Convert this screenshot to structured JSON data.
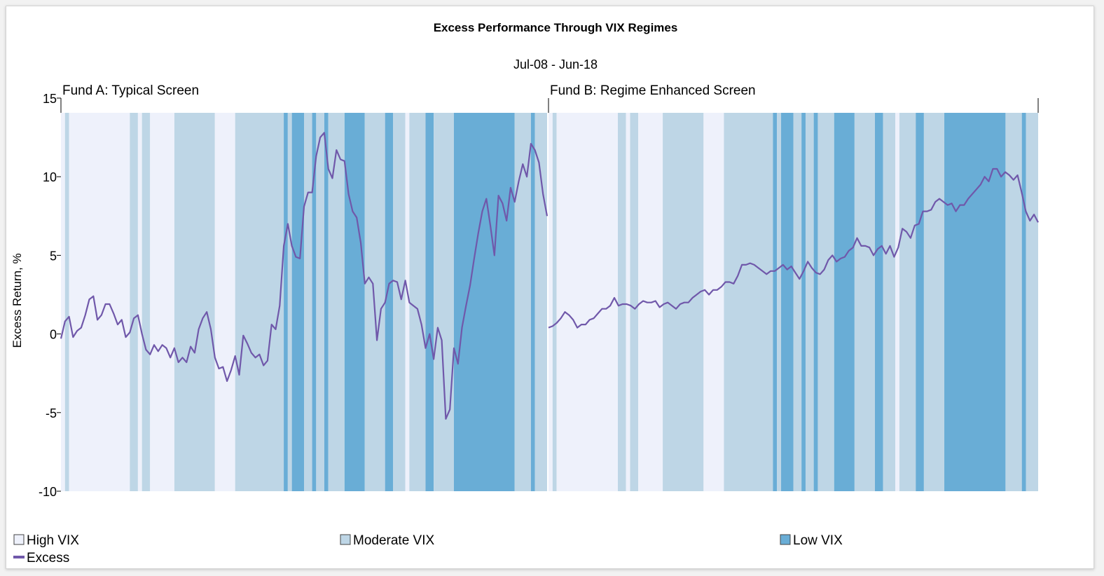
{
  "chart_data": {
    "type": "line",
    "title": "Excess Performance Through VIX Regimes",
    "subtitle": "Jul-08 - Jun-18",
    "ylabel": "Excess Return, %",
    "ylim": [
      -10,
      15
    ],
    "yticks": [
      {
        "value": 15,
        "label": "15"
      },
      {
        "value": 10,
        "label": "10"
      },
      {
        "value": 5,
        "label": "5"
      },
      {
        "value": 0,
        "label": "0"
      },
      {
        "value": -5,
        "label": "-5"
      },
      {
        "value": -10,
        "label": "-10"
      }
    ],
    "regime_colors": {
      "high": "#eef1fb",
      "moderate": "#bed6e6",
      "low": "#69add6"
    },
    "line_color": "#7058aa",
    "legend": [
      {
        "key": "high",
        "label": "High VIX",
        "kind": "box"
      },
      {
        "key": "moderate",
        "label": "Moderate VIX",
        "kind": "box"
      },
      {
        "key": "low",
        "label": "Low VIX",
        "kind": "box"
      },
      {
        "key": "excess",
        "label": "Excess",
        "kind": "line"
      }
    ],
    "panels": [
      {
        "label": "Fund A: Typical Screen",
        "months": 120,
        "regimes": "HMHHHHHHHHHHHHHHHMMHMMHHHHHHMMMMMMMMMMHHHHHMMMMMMMMMMMMLMLLLMMLMMLMMMMLLLLLMMMMMLLMMMHMMMMLLMMMMMLLLLLLLLLLLLLLLMMMMLMMM",
        "series": [
          {
            "name": "Excess",
            "values": [
              -0.3,
              0.8,
              1.1,
              -0.2,
              0.2,
              0.4,
              1.2,
              2.2,
              2.4,
              0.9,
              1.2,
              1.9,
              1.9,
              1.3,
              0.6,
              0.9,
              -0.2,
              0.1,
              1.0,
              1.2,
              0.0,
              -1.0,
              -1.3,
              -0.7,
              -1.1,
              -0.7,
              -0.9,
              -1.5,
              -0.9,
              -1.8,
              -1.5,
              -1.8,
              -0.8,
              -1.2,
              0.3,
              1.0,
              1.4,
              0.3,
              -1.5,
              -2.2,
              -2.1,
              -3.0,
              -2.3,
              -1.4,
              -2.6,
              -0.1,
              -0.6,
              -1.2,
              -1.5,
              -1.3,
              -2.0,
              -1.7,
              0.6,
              0.3,
              1.8,
              5.6,
              7.0,
              5.6,
              4.9,
              4.8,
              8.1,
              9.0,
              9.0,
              11.3,
              12.5,
              12.8,
              10.5,
              9.9,
              11.7,
              11.1,
              11.0,
              8.9,
              7.8,
              7.4,
              5.8,
              3.2,
              3.6,
              3.2,
              -0.4,
              1.6,
              2.0,
              3.2,
              3.4,
              3.3,
              2.2,
              3.4,
              2.0,
              1.8,
              1.6,
              0.6,
              -0.9,
              0.0,
              -1.6,
              0.4,
              -0.4,
              -5.4,
              -4.8,
              -0.9,
              -1.9,
              0.4,
              1.8,
              3.1,
              4.8,
              6.4,
              7.8,
              8.6,
              6.9,
              5.0,
              8.8,
              8.3,
              7.2,
              9.3,
              8.4,
              9.7,
              10.8,
              10.0,
              12.1,
              11.7,
              10.9,
              8.9,
              7.5
            ]
          }
        ]
      },
      {
        "label": "Fund B: Regime Enhanced Screen",
        "months": 120,
        "regimes": "HMHHHHHHHHHHHHHHHMMHMMHHHHHHMMMMMMMMMMHHHHHMMMMMMMMMMMMLMLLLMMLMMLMMMMLLLLLMMMMMLLMMMHMMMMLLMMMMMLLLLLLLLLLLLLLLMMMMLMMM",
        "series": [
          {
            "name": "Excess",
            "values": [
              0.4,
              0.5,
              0.7,
              1.0,
              1.4,
              1.2,
              0.9,
              0.4,
              0.6,
              0.6,
              0.9,
              1.0,
              1.3,
              1.6,
              1.6,
              1.8,
              2.3,
              1.8,
              1.9,
              1.9,
              1.8,
              1.6,
              1.9,
              2.1,
              2.0,
              2.0,
              2.1,
              1.7,
              1.9,
              2.0,
              1.8,
              1.6,
              1.9,
              2.0,
              2.0,
              2.3,
              2.5,
              2.7,
              2.8,
              2.5,
              2.8,
              2.8,
              3.0,
              3.3,
              3.3,
              3.2,
              3.7,
              4.4,
              4.4,
              4.5,
              4.4,
              4.2,
              4.0,
              3.8,
              4.0,
              4.0,
              4.2,
              4.4,
              4.1,
              4.3,
              3.9,
              3.5,
              4.0,
              4.6,
              4.2,
              3.9,
              3.8,
              4.1,
              4.7,
              5.0,
              4.6,
              4.8,
              4.9,
              5.3,
              5.5,
              6.1,
              5.6,
              5.6,
              5.5,
              5.0,
              5.4,
              5.6,
              5.1,
              5.6,
              4.9,
              5.5,
              6.7,
              6.5,
              6.1,
              6.9,
              7.0,
              7.8,
              7.8,
              7.9,
              8.4,
              8.6,
              8.4,
              8.2,
              8.3,
              7.8,
              8.2,
              8.2,
              8.6,
              8.9,
              9.2,
              9.5,
              10.0,
              9.7,
              10.5,
              10.5,
              10.0,
              10.3,
              10.1,
              9.8,
              10.1,
              9.0,
              7.8,
              7.2,
              7.6,
              7.1
            ]
          }
        ]
      }
    ]
  }
}
